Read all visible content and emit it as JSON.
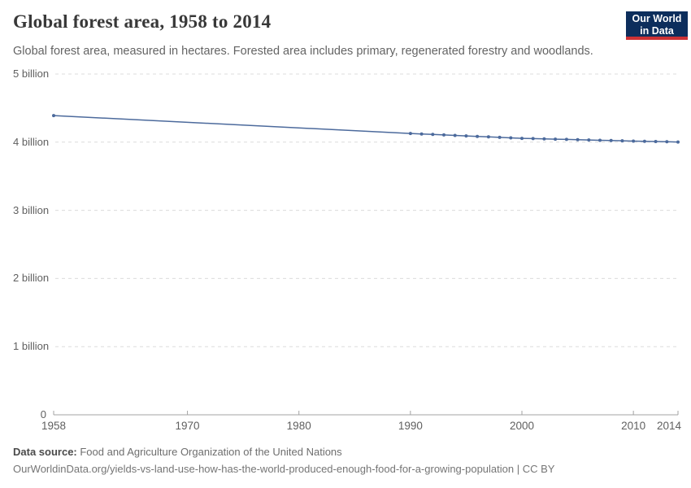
{
  "header": {
    "title": "Global forest area, 1958 to 2014",
    "subtitle": "Global forest area, measured in hectares. Forested area includes primary, regenerated forestry and woodlands.",
    "logo": {
      "line1": "Our World",
      "line2": "in Data"
    }
  },
  "chart_data": {
    "type": "line",
    "title": "Global forest area, 1958 to 2014",
    "unit": "hectares",
    "x": [
      1958,
      1990,
      1991,
      1992,
      1993,
      1994,
      1995,
      1996,
      1997,
      1998,
      1999,
      2000,
      2001,
      2002,
      2003,
      2004,
      2005,
      2006,
      2007,
      2008,
      2009,
      2010,
      2011,
      2012,
      2013,
      2014
    ],
    "values_billion_ha": [
      4.39,
      4.128,
      4.121,
      4.114,
      4.106,
      4.099,
      4.092,
      4.085,
      4.078,
      4.07,
      4.063,
      4.056,
      4.052,
      4.048,
      4.044,
      4.04,
      4.036,
      4.032,
      4.028,
      4.024,
      4.02,
      4.016,
      4.013,
      4.009,
      4.006,
      4.002
    ],
    "xlabel": "",
    "ylabel": "",
    "xlim": [
      1958,
      2014
    ],
    "ylim": [
      0,
      5
    ],
    "grid": "horizontal-dashed",
    "legend": "none",
    "y_ticks": [
      {
        "value": 0,
        "label": "0"
      },
      {
        "value": 1,
        "label": "1 billion"
      },
      {
        "value": 2,
        "label": "2 billion"
      },
      {
        "value": 3,
        "label": "3 billion"
      },
      {
        "value": 4,
        "label": "4 billion"
      },
      {
        "value": 5,
        "label": "5 billion"
      }
    ],
    "x_ticks": [
      {
        "value": 1958,
        "label": "1958"
      },
      {
        "value": 1970,
        "label": "1970"
      },
      {
        "value": 1980,
        "label": "1980"
      },
      {
        "value": 1990,
        "label": "1990"
      },
      {
        "value": 2000,
        "label": "2000"
      },
      {
        "value": 2010,
        "label": "2010"
      },
      {
        "value": 2014,
        "label": "2014"
      }
    ]
  },
  "footer": {
    "data_source_label": "Data source:",
    "data_source_value": " Food and Agriculture Organization of the United Nations",
    "url_line": "OurWorldinData.org/yields-vs-land-use-how-has-the-world-produced-enough-food-for-a-growing-population | CC BY"
  },
  "colors": {
    "line": "#4c6a9c",
    "grid": "#dcdcdc",
    "axis": "#a3a3a3",
    "logo_bg": "#0d2e5c",
    "logo_bar": "#cd3235"
  }
}
